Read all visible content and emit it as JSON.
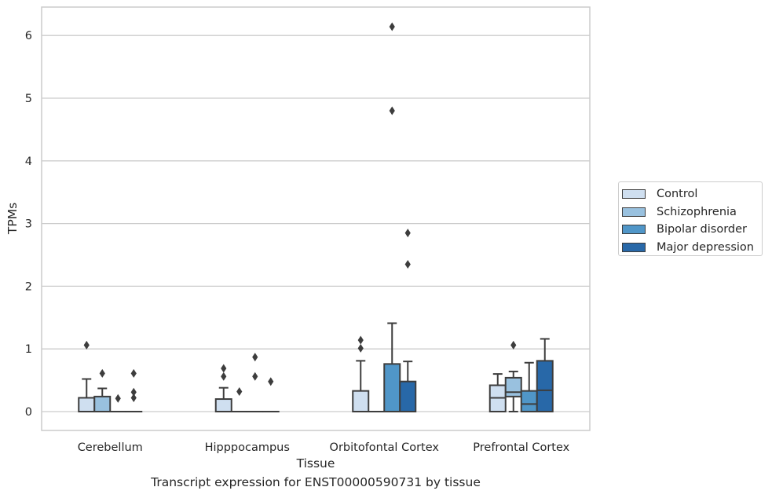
{
  "chart_data": {
    "type": "box",
    "title": "",
    "xlabel": "Tissue",
    "ylabel": "TPMs",
    "ylim": [
      -0.3,
      6.45
    ],
    "yticks": [
      0,
      1,
      2,
      3,
      4,
      5,
      6
    ],
    "grid": "horizontal",
    "legend_position": "right",
    "categories": [
      "Cerebellum",
      "Hipppocampus",
      "Orbitofontal Cortex",
      "Prefrontal Cortex"
    ],
    "series": [
      {
        "name": "Control",
        "color": "#cfdff0",
        "boxes": [
          {
            "min": 0,
            "q1": 0,
            "median": 0,
            "q3": 0.22,
            "max": 0.52,
            "outliers": [
              1.06
            ]
          },
          {
            "min": 0,
            "q1": 0,
            "median": 0,
            "q3": 0.2,
            "max": 0.38,
            "outliers": [
              0.56,
              0.69
            ]
          },
          {
            "min": 0,
            "q1": 0,
            "median": 0,
            "q3": 0.33,
            "max": 0.81,
            "outliers": [
              1.01,
              1.14
            ]
          },
          {
            "min": 0,
            "q1": 0,
            "median": 0.22,
            "q3": 0.42,
            "max": 0.6,
            "outliers": []
          }
        ]
      },
      {
        "name": "Schizophrenia",
        "color": "#99c1df",
        "boxes": [
          {
            "min": 0,
            "q1": 0,
            "median": 0,
            "q3": 0.24,
            "max": 0.37,
            "outliers": [
              0.61
            ]
          },
          {
            "min": 0,
            "q1": 0,
            "median": 0,
            "q3": 0,
            "max": 0,
            "outliers": [
              0.32
            ]
          },
          {
            "min": 0,
            "q1": 0,
            "median": 0,
            "q3": 0,
            "max": 0,
            "outliers": []
          },
          {
            "min": 0,
            "q1": 0.24,
            "median": 0.31,
            "q3": 0.54,
            "max": 0.64,
            "outliers": [
              1.06
            ]
          }
        ]
      },
      {
        "name": "Bipolar disorder",
        "color": "#5096c8",
        "boxes": [
          {
            "min": 0,
            "q1": 0,
            "median": 0,
            "q3": 0,
            "max": 0,
            "outliers": [
              0.21
            ]
          },
          {
            "min": 0,
            "q1": 0,
            "median": 0,
            "q3": 0,
            "max": 0,
            "outliers": [
              0.56,
              0.87
            ]
          },
          {
            "min": 0,
            "q1": 0,
            "median": 0,
            "q3": 0.76,
            "max": 1.41,
            "outliers": [
              4.8,
              6.14
            ]
          },
          {
            "min": 0,
            "q1": 0,
            "median": 0.12,
            "q3": 0.33,
            "max": 0.78,
            "outliers": []
          }
        ]
      },
      {
        "name": "Major depression",
        "color": "#2868a8",
        "boxes": [
          {
            "min": 0,
            "q1": 0,
            "median": 0,
            "q3": 0,
            "max": 0,
            "outliers": [
              0.22,
              0.31,
              0.61
            ]
          },
          {
            "min": 0,
            "q1": 0,
            "median": 0,
            "q3": 0,
            "max": 0,
            "outliers": [
              0.48
            ]
          },
          {
            "min": 0,
            "q1": 0,
            "median": 0,
            "q3": 0.48,
            "max": 0.8,
            "outliers": [
              2.35,
              2.85
            ]
          },
          {
            "min": 0,
            "q1": 0,
            "median": 0.34,
            "q3": 0.81,
            "max": 1.16,
            "outliers": []
          }
        ]
      }
    ]
  },
  "caption": "Transcript expression for ENST00000590731 by tissue",
  "colors": {
    "grid": "#cccccc",
    "frame": "#cccccc",
    "box_line": "#3d3d3d"
  }
}
